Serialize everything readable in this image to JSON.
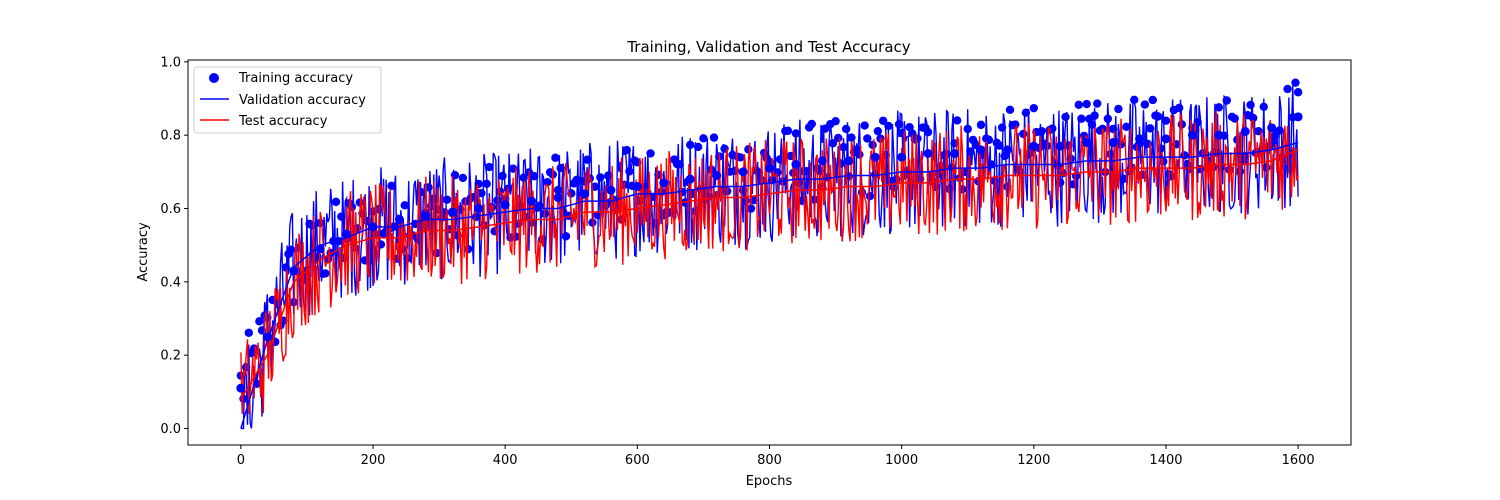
{
  "chart_data": {
    "type": "scatter",
    "title": "Training, Validation and Test Accuracy",
    "xlabel": "Epochs",
    "ylabel": "Accuracy",
    "xlim": [
      -80,
      1680
    ],
    "ylim": [
      -0.045,
      1.005
    ],
    "xticks": [
      0,
      200,
      400,
      600,
      800,
      1000,
      1200,
      1400,
      1600
    ],
    "xtick_labels": [
      "0",
      "200",
      "400",
      "600",
      "800",
      "1000",
      "1200",
      "1400",
      "1600"
    ],
    "yticks": [
      0.0,
      0.2,
      0.4,
      0.6,
      0.8,
      1.0
    ],
    "ytick_labels": [
      "0.0",
      "0.2",
      "0.4",
      "0.6",
      "0.8",
      "1.0"
    ],
    "grid": false,
    "legend_position": "upper-left",
    "colors": {
      "training": "#0000ff",
      "validation": "#0000ff",
      "test": "#ff0000"
    },
    "series": [
      {
        "name": "Training accuracy",
        "marker": "circle",
        "x": [
          0,
          40,
          80,
          120,
          160,
          200,
          240,
          280,
          320,
          360,
          400,
          440,
          480,
          520,
          560,
          600,
          640,
          680,
          720,
          760,
          800,
          840,
          880,
          920,
          960,
          1000,
          1040,
          1080,
          1120,
          1160,
          1200,
          1240,
          1280,
          1320,
          1360,
          1400,
          1440,
          1480,
          1520,
          1560,
          1600
        ],
        "y": [
          0.11,
          0.25,
          0.43,
          0.49,
          0.53,
          0.55,
          0.57,
          0.58,
          0.59,
          0.6,
          0.61,
          0.62,
          0.63,
          0.64,
          0.65,
          0.66,
          0.67,
          0.68,
          0.69,
          0.7,
          0.71,
          0.72,
          0.73,
          0.73,
          0.74,
          0.74,
          0.75,
          0.75,
          0.76,
          0.76,
          0.77,
          0.77,
          0.78,
          0.78,
          0.79,
          0.79,
          0.8,
          0.8,
          0.81,
          0.82,
          0.85
        ]
      },
      {
        "name": "Validation accuracy",
        "marker": "line",
        "x": [
          0,
          40,
          80,
          120,
          160,
          200,
          240,
          280,
          320,
          360,
          400,
          440,
          480,
          520,
          560,
          600,
          640,
          680,
          720,
          760,
          800,
          840,
          880,
          920,
          960,
          1000,
          1040,
          1080,
          1120,
          1160,
          1200,
          1240,
          1280,
          1320,
          1360,
          1400,
          1440,
          1480,
          1520,
          1560,
          1600
        ],
        "y": [
          0.0,
          0.24,
          0.44,
          0.5,
          0.52,
          0.55,
          0.55,
          0.57,
          0.57,
          0.58,
          0.59,
          0.6,
          0.6,
          0.62,
          0.62,
          0.64,
          0.64,
          0.65,
          0.66,
          0.66,
          0.67,
          0.68,
          0.68,
          0.69,
          0.69,
          0.7,
          0.7,
          0.71,
          0.71,
          0.72,
          0.72,
          0.72,
          0.73,
          0.73,
          0.74,
          0.74,
          0.74,
          0.75,
          0.75,
          0.76,
          0.78
        ]
      },
      {
        "name": "Test accuracy",
        "marker": "line",
        "x": [
          0,
          40,
          80,
          120,
          160,
          200,
          240,
          280,
          320,
          360,
          400,
          440,
          480,
          520,
          560,
          600,
          640,
          680,
          720,
          760,
          800,
          840,
          880,
          920,
          960,
          1000,
          1040,
          1080,
          1120,
          1160,
          1200,
          1240,
          1280,
          1320,
          1360,
          1400,
          1440,
          1480,
          1520,
          1560,
          1600
        ],
        "y": [
          0.08,
          0.2,
          0.4,
          0.46,
          0.5,
          0.52,
          0.52,
          0.54,
          0.54,
          0.55,
          0.56,
          0.57,
          0.57,
          0.59,
          0.59,
          0.6,
          0.61,
          0.62,
          0.63,
          0.63,
          0.64,
          0.65,
          0.65,
          0.66,
          0.66,
          0.67,
          0.67,
          0.68,
          0.68,
          0.69,
          0.69,
          0.69,
          0.7,
          0.7,
          0.71,
          0.71,
          0.71,
          0.72,
          0.72,
          0.73,
          0.76
        ]
      }
    ]
  }
}
